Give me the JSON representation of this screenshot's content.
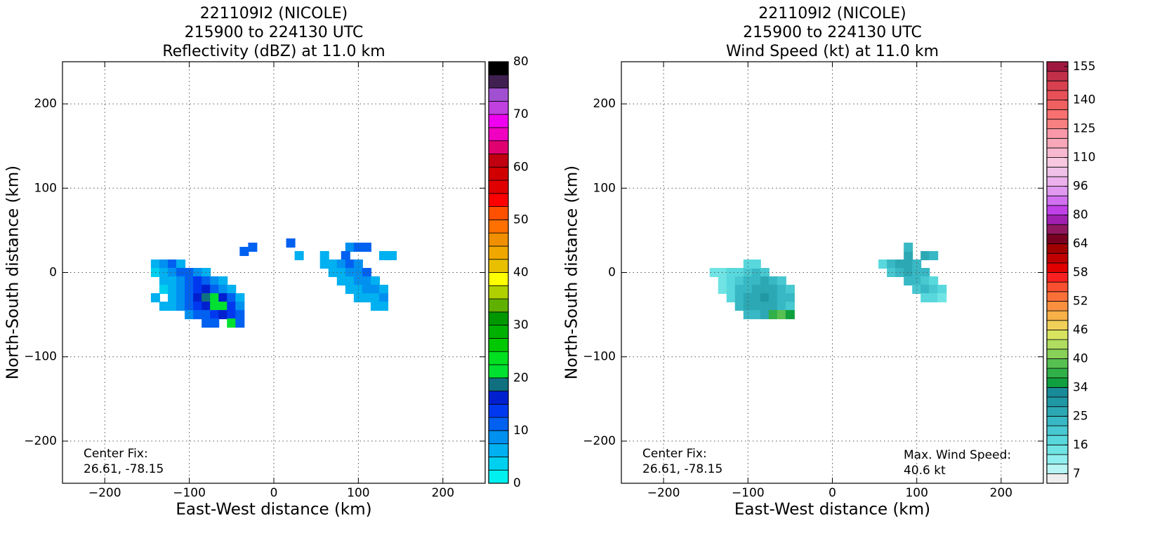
{
  "chart_data": [
    {
      "type": "heatmap",
      "title": [
        "221109I2 (NICOLE)",
        "215900 to 224130 UTC",
        "Reflectivity (dBZ) at 11.0 km"
      ],
      "xlabel": "East-West distance (km)",
      "ylabel": "North-South distance (km)",
      "xlim": [
        -250,
        250
      ],
      "ylim": [
        -250,
        250
      ],
      "xticks": [
        {
          "value": -200,
          "label": "−200"
        },
        {
          "value": -100,
          "label": "−100"
        },
        0,
        100,
        200
      ],
      "yticks": [
        {
          "value": -200,
          "label": "−200"
        },
        {
          "value": -100,
          "label": "−100"
        },
        0,
        100,
        200
      ],
      "grid": true,
      "cells": {
        "x": [
          -140,
          -130,
          -120,
          -110,
          -140,
          -130,
          -120,
          -110,
          -100,
          -90,
          -80,
          -130,
          -120,
          -110,
          -100,
          -90,
          -80,
          -70,
          -60,
          -130,
          -120,
          -110,
          -100,
          -90,
          -80,
          -70,
          -60,
          -50,
          -140,
          -120,
          -110,
          -100,
          -90,
          -80,
          -70,
          -60,
          -50,
          -40,
          -130,
          -120,
          -110,
          -100,
          -90,
          -80,
          -70,
          -60,
          -50,
          -40,
          -100,
          -90,
          -80,
          -70,
          -60,
          -50,
          -40,
          -80,
          -70,
          -50,
          -40,
          -35,
          -25,
          20,
          30,
          90,
          100,
          110,
          60,
          85,
          130,
          140,
          60,
          70,
          80,
          90,
          100,
          70,
          80,
          90,
          100,
          110,
          80,
          90,
          100,
          110,
          120,
          90,
          100,
          110,
          120,
          130,
          100,
          110,
          120,
          130,
          120,
          130
        ],
        "y": [
          10,
          10,
          10,
          10,
          0,
          0,
          0,
          0,
          0,
          0,
          0,
          -10,
          -10,
          -10,
          -10,
          -10,
          -10,
          -10,
          -10,
          -20,
          -20,
          -20,
          -20,
          -20,
          -20,
          -20,
          -20,
          -20,
          -30,
          -30,
          -30,
          -30,
          -30,
          -30,
          -30,
          -30,
          -30,
          -30,
          -40,
          -40,
          -40,
          -40,
          -40,
          -40,
          -40,
          -40,
          -40,
          -40,
          -50,
          -50,
          -50,
          -50,
          -50,
          -50,
          -50,
          -60,
          -60,
          -60,
          -60,
          25,
          30,
          35,
          20,
          30,
          30,
          30,
          20,
          20,
          20,
          20,
          10,
          10,
          10,
          10,
          10,
          0,
          0,
          0,
          0,
          0,
          -10,
          -10,
          -10,
          -10,
          -10,
          -20,
          -20,
          -20,
          -20,
          -20,
          -30,
          -30,
          -30,
          -30,
          -40,
          -40
        ],
        "values": [
          5,
          8,
          12,
          6,
          4,
          6,
          8,
          10,
          12,
          8,
          6,
          5,
          7,
          9,
          11,
          13,
          10,
          8,
          6,
          4,
          6,
          8,
          10,
          14,
          16,
          12,
          9,
          6,
          5,
          6,
          8,
          12,
          15,
          18,
          22,
          15,
          10,
          6,
          6,
          7,
          9,
          11,
          13,
          16,
          20,
          22,
          14,
          9,
          8,
          10,
          12,
          14,
          16,
          13,
          11,
          10,
          12,
          20,
          12,
          12,
          12,
          10,
          5,
          8,
          10,
          12,
          6,
          12,
          6,
          5,
          5,
          7,
          8,
          10,
          8,
          6,
          7,
          8,
          9,
          10,
          5,
          7,
          8,
          9,
          7,
          6,
          7,
          8,
          9,
          7,
          5,
          6,
          7,
          8,
          6,
          7
        ]
      },
      "colorbar": {
        "clim": [
          0,
          80
        ],
        "ticks": [
          0,
          10,
          20,
          30,
          40,
          50,
          60,
          70,
          80
        ],
        "colors": [
          "#00f0f0",
          "#00d0f0",
          "#00b0f0",
          "#0090f0",
          "#0060f0",
          "#0038f0",
          "#0020d0",
          "#107080",
          "#00e030",
          "#00e020",
          "#00c800",
          "#00b000",
          "#009800",
          "#60b000",
          "#b0d000",
          "#ffff00",
          "#e8c000",
          "#f0a800",
          "#f09000",
          "#ff7000",
          "#ff5000",
          "#ff0000",
          "#e00000",
          "#d00000",
          "#c00010",
          "#e00070",
          "#f000c0",
          "#f000f0",
          "#c040e0",
          "#a050d0",
          "#402050",
          "#000000"
        ]
      },
      "annotations": [
        {
          "lines": [
            "Center Fix:",
            "26.61, -78.15"
          ],
          "corner": "lower left"
        }
      ]
    },
    {
      "type": "heatmap",
      "title": [
        "221109I2 (NICOLE)",
        "215900 to 224130 UTC",
        "Wind Speed (kt) at 11.0 km"
      ],
      "xlabel": "East-West distance (km)",
      "ylabel": "North-South distance (km)",
      "xlim": [
        -250,
        250
      ],
      "ylim": [
        -250,
        250
      ],
      "xticks": [
        {
          "value": -200,
          "label": "−200"
        },
        {
          "value": -100,
          "label": "−100"
        },
        0,
        100,
        200
      ],
      "yticks": [
        {
          "value": -200,
          "label": "−200"
        },
        {
          "value": -100,
          "label": "−100"
        },
        0,
        100,
        200
      ],
      "grid": true,
      "cells": {
        "x": [
          -140,
          -130,
          -120,
          -110,
          -100,
          -90,
          -80,
          -130,
          -120,
          -110,
          -100,
          -90,
          -80,
          -70,
          -60,
          -130,
          -120,
          -110,
          -100,
          -90,
          -80,
          -70,
          -60,
          -50,
          -120,
          -110,
          -100,
          -90,
          -80,
          -70,
          -60,
          -50,
          -110,
          -100,
          -90,
          -80,
          -70,
          -60,
          -50,
          -100,
          -90,
          -80,
          -70,
          -60,
          -50,
          -100,
          -90,
          60,
          70,
          80,
          90,
          100,
          70,
          80,
          90,
          100,
          110,
          90,
          100,
          110,
          120,
          100,
          110,
          120,
          130,
          110,
          120,
          130,
          90,
          110,
          120,
          90
        ],
        "y": [
          0,
          0,
          0,
          0,
          0,
          0,
          0,
          -10,
          -10,
          -10,
          -10,
          -10,
          -10,
          -10,
          -10,
          -20,
          -20,
          -20,
          -20,
          -20,
          -20,
          -20,
          -20,
          -20,
          -30,
          -30,
          -30,
          -30,
          -30,
          -30,
          -30,
          -30,
          -40,
          -40,
          -40,
          -40,
          -40,
          -40,
          -40,
          -50,
          -50,
          -50,
          -50,
          -50,
          -50,
          10,
          10,
          10,
          10,
          10,
          10,
          10,
          0,
          0,
          0,
          0,
          0,
          -10,
          -10,
          -10,
          -10,
          -20,
          -20,
          -20,
          -20,
          -30,
          -30,
          -30,
          20,
          20,
          20,
          30
        ],
        "values": [
          14,
          15,
          17,
          18,
          20,
          22,
          19,
          15,
          18,
          21,
          23,
          24,
          25,
          22,
          20,
          14,
          17,
          22,
          24,
          26,
          27,
          26,
          24,
          20,
          18,
          23,
          25,
          27,
          28,
          26,
          24,
          22,
          22,
          25,
          27,
          26,
          25,
          24,
          21,
          22,
          24,
          25,
          36,
          38,
          35,
          16,
          18,
          18,
          22,
          25,
          26,
          24,
          20,
          23,
          25,
          24,
          22,
          22,
          24,
          21,
          18,
          20,
          22,
          19,
          16,
          17,
          18,
          15,
          25,
          26,
          24,
          24
        ]
      },
      "colorbar": {
        "ticks": [
          7,
          16,
          25,
          34,
          40,
          46,
          52,
          58,
          64,
          80,
          96,
          110,
          125,
          140,
          155
        ],
        "colors": [
          "#eeeeee",
          "#b8f4f4",
          "#90eeee",
          "#70e4e4",
          "#58d8dc",
          "#48c8d0",
          "#38b8c4",
          "#2ca8b4",
          "#2098a4",
          "#188a98",
          "#10a040",
          "#30b048",
          "#58c050",
          "#88d058",
          "#b0dc60",
          "#d8e460",
          "#f0d058",
          "#f8b048",
          "#f89040",
          "#f87038",
          "#f85030",
          "#f82020",
          "#e00000",
          "#c00000",
          "#a00000",
          "#780020",
          "#901860",
          "#a020b0",
          "#c040e8",
          "#d070f0",
          "#e098f0",
          "#ecb0ec",
          "#f0c0e8",
          "#f8c8e0",
          "#f8b8d0",
          "#f8a8b8",
          "#f898a8",
          "#f88080",
          "#f87070",
          "#f06060",
          "#e85058",
          "#d84050",
          "#c03048",
          "#a01840"
        ]
      },
      "annotations": [
        {
          "lines": [
            "Center Fix:",
            "26.61, -78.15"
          ],
          "corner": "lower left"
        },
        {
          "lines": [
            "Max. Wind Speed:",
            "40.6 kt"
          ],
          "corner": "lower right"
        }
      ]
    }
  ]
}
